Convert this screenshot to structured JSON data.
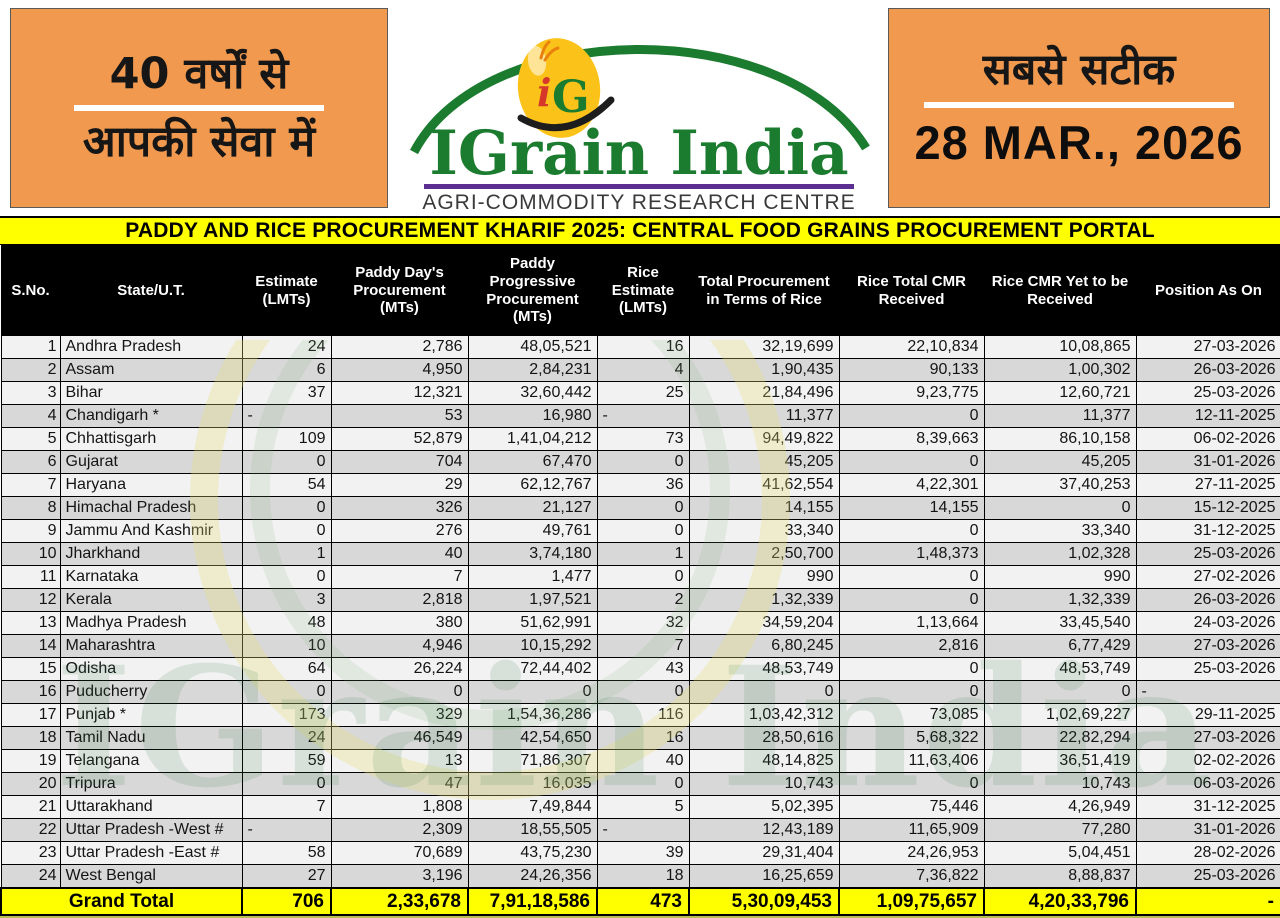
{
  "masthead": {
    "left_tagline_line1": "40 वर्षों से",
    "left_tagline_line2": "आपकी सेवा में",
    "brand": {
      "title": "IGrain India",
      "emblem_i": "i",
      "emblem_g": "G",
      "subtitle": "AGRI-COMMODITY RESEARCH CENTRE"
    },
    "right_tagline": "सबसे सटीक",
    "date": "28 MAR., 2026",
    "colors": {
      "orange": "#F0994F",
      "brand_green": "#1B7B2F",
      "emblem_yellow": "#FBC31A",
      "underline_purple": "#5B2F91",
      "title_yellow": "#FFFF00"
    }
  },
  "report_title": "PADDY AND RICE PROCUREMENT KHARIF 2025: CENTRAL FOOD GRAINS PROCUREMENT PORTAL",
  "table": {
    "columns": [
      "S.No.",
      "State/U.T.",
      "Estimate (LMTs)",
      "Paddy Day's Procurement (MTs)",
      "Paddy Progressive Procurement (MTs)",
      "Rice Estimate (LMTs)",
      "Total Procurement in Terms of Rice",
      "Rice Total CMR Received",
      "Rice CMR Yet to be Received",
      "Position As On"
    ],
    "rows": [
      [
        "1",
        "Andhra Pradesh",
        "24",
        "2,786",
        "48,05,521",
        "16",
        "32,19,699",
        "22,10,834",
        "10,08,865",
        "27-03-2026"
      ],
      [
        "2",
        "Assam",
        "6",
        "4,950",
        "2,84,231",
        "4",
        "1,90,435",
        "90,133",
        "1,00,302",
        "26-03-2026"
      ],
      [
        "3",
        "Bihar",
        "37",
        "12,321",
        "32,60,442",
        "25",
        "21,84,496",
        "9,23,775",
        "12,60,721",
        "25-03-2026"
      ],
      [
        "4",
        "Chandigarh *",
        "-",
        "53",
        "16,980",
        "-",
        "11,377",
        "0",
        "11,377",
        "12-11-2025"
      ],
      [
        "5",
        "Chhattisgarh",
        "109",
        "52,879",
        "1,41,04,212",
        "73",
        "94,49,822",
        "8,39,663",
        "86,10,158",
        "06-02-2026"
      ],
      [
        "6",
        "Gujarat",
        "0",
        "704",
        "67,470",
        "0",
        "45,205",
        "0",
        "45,205",
        "31-01-2026"
      ],
      [
        "7",
        "Haryana",
        "54",
        "29",
        "62,12,767",
        "36",
        "41,62,554",
        "4,22,301",
        "37,40,253",
        "27-11-2025"
      ],
      [
        "8",
        "Himachal Pradesh",
        "0",
        "326",
        "21,127",
        "0",
        "14,155",
        "14,155",
        "0",
        "15-12-2025"
      ],
      [
        "9",
        "Jammu And Kashmir",
        "0",
        "276",
        "49,761",
        "0",
        "33,340",
        "0",
        "33,340",
        "31-12-2025"
      ],
      [
        "10",
        "Jharkhand",
        "1",
        "40",
        "3,74,180",
        "1",
        "2,50,700",
        "1,48,373",
        "1,02,328",
        "25-03-2026"
      ],
      [
        "11",
        "Karnataka",
        "0",
        "7",
        "1,477",
        "0",
        "990",
        "0",
        "990",
        "27-02-2026"
      ],
      [
        "12",
        "Kerala",
        "3",
        "2,818",
        "1,97,521",
        "2",
        "1,32,339",
        "0",
        "1,32,339",
        "26-03-2026"
      ],
      [
        "13",
        "Madhya Pradesh",
        "48",
        "380",
        "51,62,991",
        "32",
        "34,59,204",
        "1,13,664",
        "33,45,540",
        "24-03-2026"
      ],
      [
        "14",
        "Maharashtra",
        "10",
        "4,946",
        "10,15,292",
        "7",
        "6,80,245",
        "2,816",
        "6,77,429",
        "27-03-2026"
      ],
      [
        "15",
        "Odisha",
        "64",
        "26,224",
        "72,44,402",
        "43",
        "48,53,749",
        "0",
        "48,53,749",
        "25-03-2026"
      ],
      [
        "16",
        "Puducherry",
        "0",
        "0",
        "0",
        "0",
        "0",
        "0",
        "0",
        "-"
      ],
      [
        "17",
        "Punjab *",
        "173",
        "329",
        "1,54,36,286",
        "116",
        "1,03,42,312",
        "73,085",
        "1,02,69,227",
        "29-11-2025"
      ],
      [
        "18",
        "Tamil Nadu",
        "24",
        "46,549",
        "42,54,650",
        "16",
        "28,50,616",
        "5,68,322",
        "22,82,294",
        "27-03-2026"
      ],
      [
        "19",
        "Telangana",
        "59",
        "13",
        "71,86,307",
        "40",
        "48,14,825",
        "11,63,406",
        "36,51,419",
        "02-02-2026"
      ],
      [
        "20",
        "Tripura",
        "0",
        "47",
        "16,035",
        "0",
        "10,743",
        "0",
        "10,743",
        "06-03-2026"
      ],
      [
        "21",
        "Uttarakhand",
        "7",
        "1,808",
        "7,49,844",
        "5",
        "5,02,395",
        "75,446",
        "4,26,949",
        "31-12-2025"
      ],
      [
        "22",
        "Uttar Pradesh -West #",
        "-",
        "2,309",
        "18,55,505",
        "-",
        "12,43,189",
        "11,65,909",
        "77,280",
        "31-01-2026"
      ],
      [
        "23",
        "Uttar Pradesh -East #",
        "58",
        "70,689",
        "43,75,230",
        "39",
        "29,31,404",
        "24,26,953",
        "5,04,451",
        "28-02-2026"
      ],
      [
        "24",
        "West Bengal",
        "27",
        "3,196",
        "24,26,356",
        "18",
        "16,25,659",
        "7,36,822",
        "8,88,837",
        "25-03-2026"
      ]
    ],
    "grand_total": {
      "label": "Grand Total",
      "values": [
        "706",
        "2,33,678",
        "7,91,18,586",
        "473",
        "5,30,09,453",
        "1,09,75,657",
        "4,20,33,796",
        "-"
      ]
    }
  },
  "watermark_text": "IGrain India"
}
